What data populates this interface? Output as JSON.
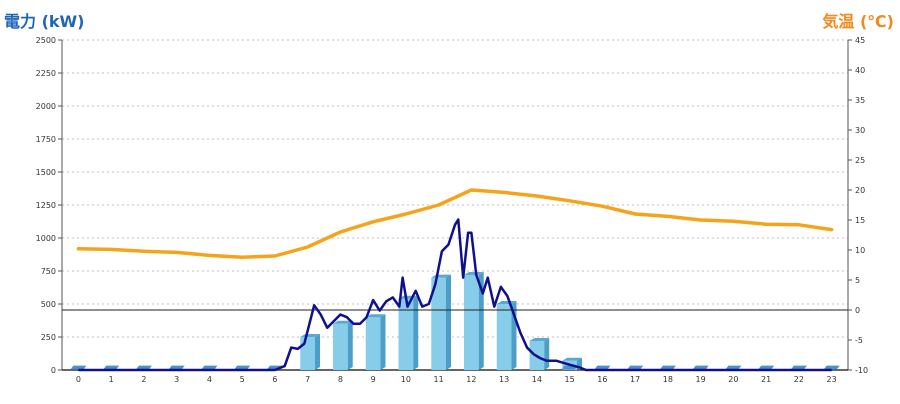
{
  "titles": {
    "left": "電力 (kW)",
    "right": "気温 (℃)"
  },
  "chart_data": {
    "type": "bar",
    "categories": [
      "0",
      "1",
      "2",
      "3",
      "4",
      "5",
      "6",
      "7",
      "8",
      "9",
      "10",
      "11",
      "12",
      "13",
      "14",
      "15",
      "16",
      "17",
      "18",
      "19",
      "20",
      "21",
      "22",
      "23"
    ],
    "left_axis": {
      "min": 0,
      "max": 2500,
      "ticks": [
        0,
        250,
        500,
        750,
        1000,
        1250,
        1500,
        1750,
        2000,
        2250,
        2500
      ]
    },
    "right_axis": {
      "min": -10,
      "max": 45,
      "ticks": [
        -10,
        -5,
        0,
        5,
        10,
        15,
        20,
        25,
        30,
        35,
        40,
        45
      ]
    },
    "bars_kw": [
      0,
      0,
      0,
      0,
      0,
      0,
      0,
      250,
      350,
      400,
      540,
      700,
      720,
      500,
      220,
      70,
      0,
      0,
      0,
      0,
      0,
      0,
      0,
      0
    ],
    "power_line_kw": [
      [
        0,
        0
      ],
      [
        1,
        0
      ],
      [
        2,
        0
      ],
      [
        3,
        0
      ],
      [
        4,
        0
      ],
      [
        5,
        0
      ],
      [
        6,
        0
      ],
      [
        6.3,
        30
      ],
      [
        6.5,
        170
      ],
      [
        6.7,
        160
      ],
      [
        6.9,
        200
      ],
      [
        7.2,
        490
      ],
      [
        7.4,
        420
      ],
      [
        7.6,
        320
      ],
      [
        7.8,
        370
      ],
      [
        8.0,
        420
      ],
      [
        8.2,
        400
      ],
      [
        8.4,
        350
      ],
      [
        8.6,
        350
      ],
      [
        8.8,
        400
      ],
      [
        9.0,
        530
      ],
      [
        9.2,
        450
      ],
      [
        9.4,
        520
      ],
      [
        9.6,
        550
      ],
      [
        9.8,
        480
      ],
      [
        9.9,
        700
      ],
      [
        10.05,
        480
      ],
      [
        10.3,
        600
      ],
      [
        10.5,
        480
      ],
      [
        10.7,
        500
      ],
      [
        10.9,
        650
      ],
      [
        11.1,
        900
      ],
      [
        11.3,
        950
      ],
      [
        11.5,
        1100
      ],
      [
        11.6,
        1140
      ],
      [
        11.75,
        700
      ],
      [
        11.9,
        1040
      ],
      [
        12.0,
        1040
      ],
      [
        12.15,
        720
      ],
      [
        12.35,
        580
      ],
      [
        12.5,
        700
      ],
      [
        12.7,
        480
      ],
      [
        12.9,
        630
      ],
      [
        13.1,
        560
      ],
      [
        13.3,
        420
      ],
      [
        13.5,
        280
      ],
      [
        13.7,
        170
      ],
      [
        13.9,
        120
      ],
      [
        14.1,
        90
      ],
      [
        14.3,
        70
      ],
      [
        14.6,
        70
      ],
      [
        15.0,
        40
      ],
      [
        15.3,
        20
      ],
      [
        15.5,
        0
      ],
      [
        16,
        0
      ],
      [
        17,
        0
      ],
      [
        18,
        0
      ],
      [
        19,
        0
      ],
      [
        20,
        0
      ],
      [
        21,
        0
      ],
      [
        22,
        0
      ],
      [
        23,
        0
      ]
    ],
    "temperature_c": [
      10.2,
      10.1,
      9.8,
      9.6,
      9.1,
      8.8,
      9.0,
      10.5,
      13.0,
      14.7,
      16.0,
      17.5,
      20.0,
      19.6,
      19.0,
      18.2,
      17.3,
      16.0,
      15.6,
      15.0,
      14.8,
      14.3,
      14.2,
      13.4
    ],
    "markers_c": [
      {
        "hour": 0,
        "value": -9.6
      },
      {
        "hour": 1,
        "value": -9.6
      },
      {
        "hour": 2,
        "value": -9.6
      },
      {
        "hour": 3,
        "value": -9.6
      },
      {
        "hour": 4,
        "value": -9.6
      },
      {
        "hour": 5,
        "value": -9.6
      },
      {
        "hour": 6,
        "value": -9.6
      },
      {
        "hour": 15,
        "value": -9.6
      },
      {
        "hour": 16,
        "value": -9.6
      },
      {
        "hour": 17,
        "value": -9.6
      },
      {
        "hour": 18,
        "value": -9.6
      },
      {
        "hour": 19,
        "value": -9.6
      },
      {
        "hour": 20,
        "value": -9.6
      },
      {
        "hour": 21,
        "value": -9.6
      },
      {
        "hour": 22,
        "value": -9.6
      },
      {
        "hour": 23,
        "value": -9.6
      }
    ],
    "zero_line_c": 0,
    "grid": true,
    "colors": {
      "bar": "#87cdea",
      "bar_side": "#4a9ec8",
      "bar_top": "#5aa8d2",
      "power_line": "#10108c",
      "temperature": "#f5a31a",
      "marker": "#4a8fcf",
      "grid": "#c0c0c0",
      "left_title": "#1f66b8",
      "right_title": "#f08a1c"
    }
  }
}
